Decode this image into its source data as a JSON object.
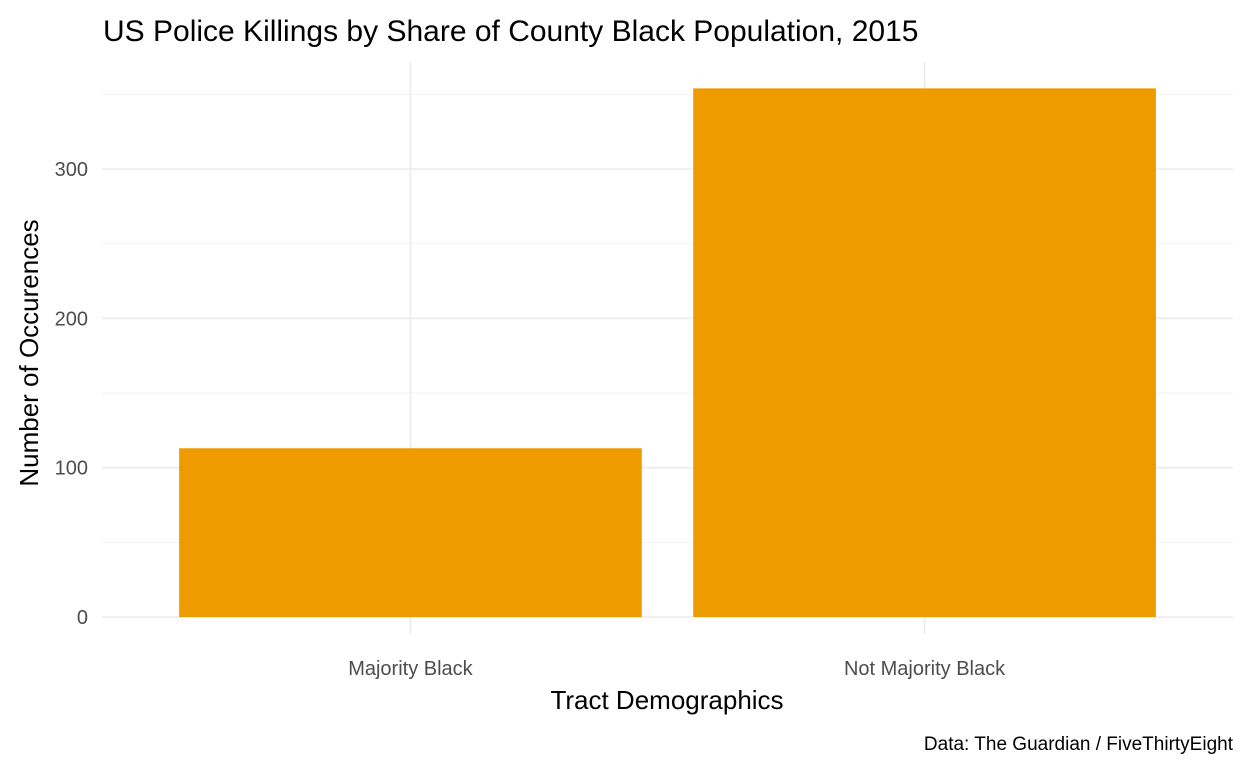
{
  "chart_data": {
    "type": "bar",
    "title": "US Police Killings by Share of County Black Population, 2015",
    "xlabel": "Tract Demographics",
    "ylabel": "Number of Occurences",
    "caption": "Data: The Guardian / FiveThirtyEight",
    "categories": [
      "Majority Black",
      "Not Majority Black"
    ],
    "values": [
      113,
      354
    ],
    "ylim": [
      0,
      363
    ],
    "yticks": [
      0,
      100,
      200,
      300
    ],
    "ytick_labels": [
      "0",
      "100",
      "200",
      "300"
    ],
    "grid": true,
    "legend": "none",
    "bar_color": "#EE9B00"
  }
}
